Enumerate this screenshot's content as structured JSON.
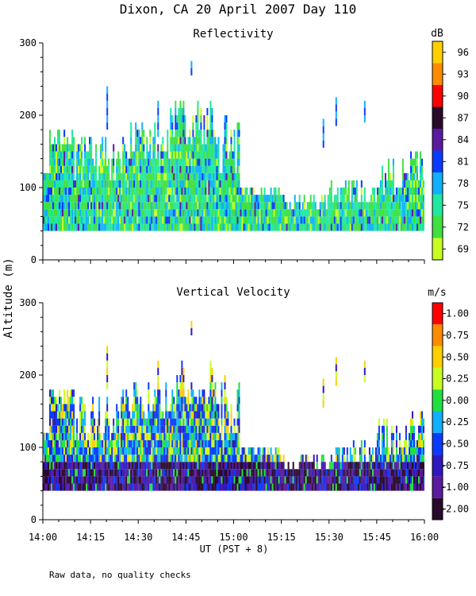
{
  "chart_data": {
    "type": "heatmap",
    "title": "Dixon, CA 20 April 2007  Day 110",
    "ylabel": "Altitude (m)",
    "xlabel": "UT  (PST + 8)",
    "note": "Raw data, no quality checks",
    "x_ticks": [
      "14:00",
      "14:15",
      "14:30",
      "14:45",
      "15:00",
      "15:15",
      "15:30",
      "15:45",
      "16:00"
    ],
    "x_range_minutes": [
      0,
      120
    ],
    "panels": [
      {
        "title": "Reflectivity",
        "units": "dB",
        "ylim": [
          0,
          300
        ],
        "y_ticks": [
          "0",
          "100",
          "200",
          "300"
        ],
        "colorbar": {
          "labels": [
            "96",
            "93",
            "90",
            "87",
            "84",
            "81",
            "78",
            "75",
            "72",
            "69"
          ],
          "colors": [
            "#ffd000",
            "#ff8c00",
            "#ff0000",
            "#2a0a2a",
            "#5a1aa0",
            "#0a3aff",
            "#10b0ff",
            "#20e8a0",
            "#40e040",
            "#c8ff20"
          ]
        },
        "data_notes": "Returns span roughly 40-180 m; dominant values 72-78 dB"
      },
      {
        "title": "Vertical Velocity",
        "units": "m/s",
        "ylim": [
          0,
          300
        ],
        "y_ticks": [
          "0",
          "100",
          "200",
          "300"
        ],
        "colorbar": {
          "labels": [
            "1.00",
            "0.75",
            "0.50",
            "0.25",
            "0.00",
            "-0.25",
            "-0.50",
            "-0.75",
            "-1.00",
            "-2.00"
          ],
          "colors": [
            "#ff0000",
            "#ff8c00",
            "#ffd000",
            "#c8ff20",
            "#20e040",
            "#10b0ff",
            "#0a3aff",
            "#3018c0",
            "#5a1aa0",
            "#2a0a2a"
          ]
        },
        "data_notes": "Mostly downward (-0.50 to -1.00 m/s) below 80 m"
      }
    ]
  }
}
